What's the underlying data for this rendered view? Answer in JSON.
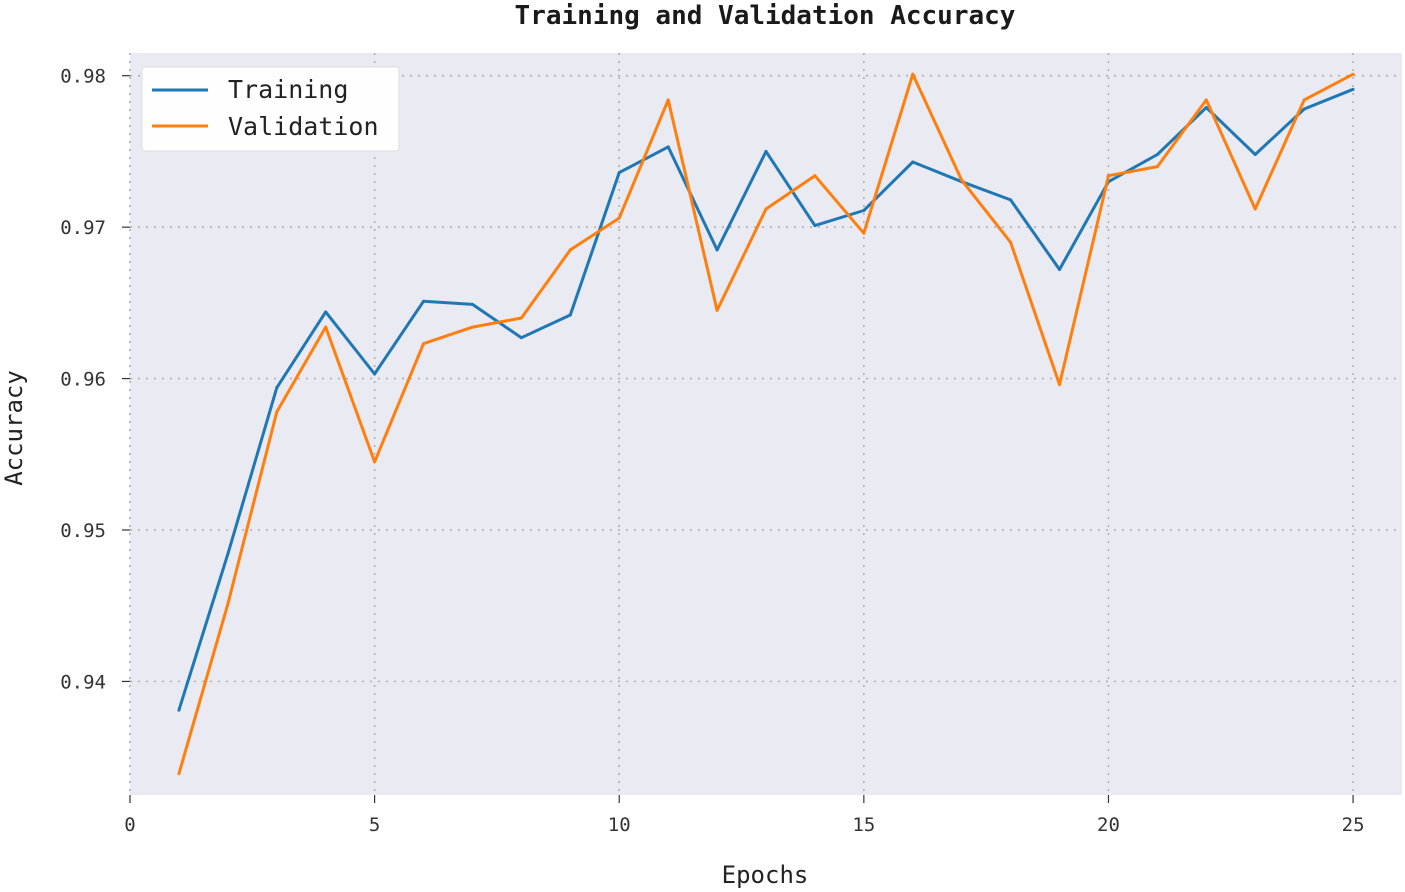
{
  "chart_data": {
    "type": "line",
    "title": "Training and Validation Accuracy",
    "xlabel": "Epochs",
    "ylabel": "Accuracy",
    "xlim": [
      0,
      26
    ],
    "ylim": [
      0.9325,
      0.9815
    ],
    "xticks": [
      0,
      5,
      10,
      15,
      20,
      25
    ],
    "yticks": [
      0.94,
      0.95,
      0.96,
      0.97,
      0.98
    ],
    "ytick_labels": [
      "0.94",
      "0.95",
      "0.96",
      "0.97",
      "0.98"
    ],
    "grid": true,
    "legend_position": "top-left",
    "background_color": "#eaeaf2",
    "x": [
      1,
      2,
      3,
      4,
      5,
      6,
      7,
      8,
      9,
      10,
      11,
      12,
      13,
      14,
      15,
      16,
      17,
      18,
      19,
      20,
      21,
      22,
      23,
      24,
      25
    ],
    "series": [
      {
        "name": "Training",
        "color": "#1f77b4",
        "values": [
          0.9381,
          0.9484,
          0.9594,
          0.9644,
          0.9603,
          0.9651,
          0.9649,
          0.9627,
          0.9642,
          0.9736,
          0.9753,
          0.9685,
          0.975,
          0.9701,
          0.9711,
          0.9743,
          0.973,
          0.9718,
          0.9672,
          0.973,
          0.9748,
          0.9779,
          0.9748,
          0.9778,
          0.9791
        ]
      },
      {
        "name": "Validation",
        "color": "#ff7f0e",
        "values": [
          0.9339,
          0.9451,
          0.9578,
          0.9634,
          0.9545,
          0.9623,
          0.9634,
          0.964,
          0.9685,
          0.9706,
          0.9784,
          0.9645,
          0.9712,
          0.9734,
          0.9696,
          0.9801,
          0.9731,
          0.969,
          0.9596,
          0.9734,
          0.974,
          0.9784,
          0.9712,
          0.9784,
          0.9801
        ]
      }
    ]
  }
}
